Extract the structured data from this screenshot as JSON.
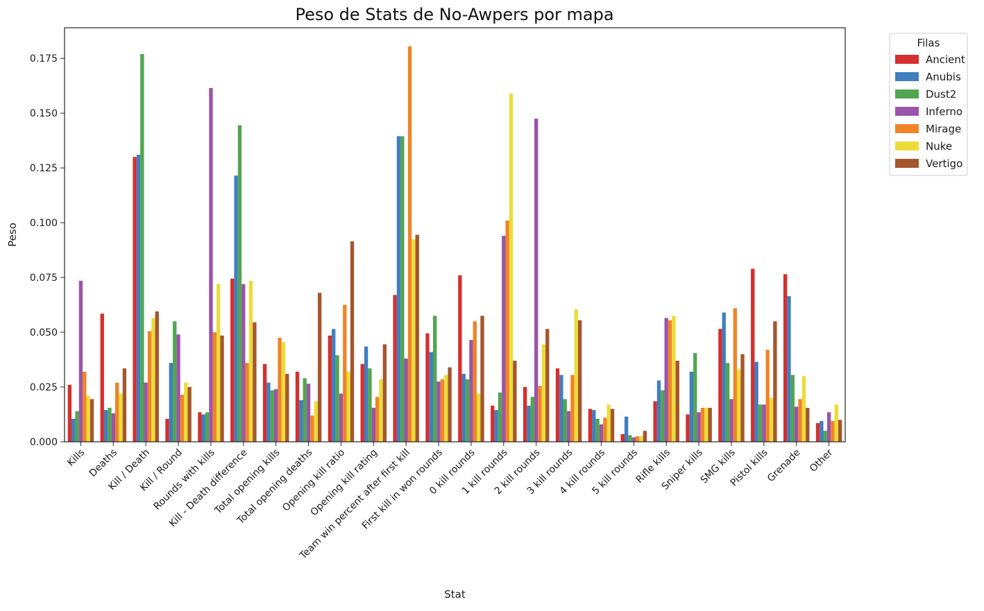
{
  "chart_data": {
    "type": "bar",
    "title": "Peso de Stats de No-Awpers por mapa",
    "xlabel": "Stat",
    "ylabel": "Peso",
    "ylim": [
      0,
      0.189
    ],
    "yticks": [
      "0.000",
      "0.025",
      "0.050",
      "0.075",
      "0.100",
      "0.125",
      "0.150",
      "0.175"
    ],
    "legend": {
      "title": "Filas",
      "position": "outside-top-right"
    },
    "categories": [
      "Kills",
      "Deaths",
      "Kill / Death",
      "Kill / Round",
      "Rounds with kills",
      "Kill - Death difference",
      "Total opening kills",
      "Total opening deaths",
      "Opening kill ratio",
      "Opening kill rating",
      "Team win percent after first kill",
      "First kill in won rounds",
      "0 kill rounds",
      "1 kill rounds",
      "2 kill rounds",
      "3 kill rounds",
      "4 kill rounds",
      "5 kill rounds",
      "Rifle kills",
      "Sniper kills",
      "SMG kills",
      "Pistol kills",
      "Grenade",
      "Other"
    ],
    "series": [
      {
        "name": "Ancient",
        "color": "#d62f2f",
        "values": [
          0.026,
          0.0585,
          0.13,
          0.0105,
          0.0135,
          0.0745,
          0.0355,
          0.032,
          0.0485,
          0.0355,
          0.067,
          0.0495,
          0.076,
          0.0165,
          0.025,
          0.0335,
          0.015,
          0.0035,
          0.0185,
          0.0125,
          0.0515,
          0.079,
          0.0765,
          0.0085
        ]
      },
      {
        "name": "Anubis",
        "color": "#3f7fbf",
        "values": [
          0.0105,
          0.0145,
          0.131,
          0.036,
          0.0125,
          0.1215,
          0.027,
          0.019,
          0.0515,
          0.0435,
          0.1395,
          0.041,
          0.031,
          0.0145,
          0.0165,
          0.0305,
          0.0145,
          0.0115,
          0.028,
          0.032,
          0.059,
          0.0365,
          0.0665,
          0.0095
        ]
      },
      {
        "name": "Dust2",
        "color": "#52a552",
        "values": [
          0.014,
          0.0155,
          0.177,
          0.055,
          0.0135,
          0.1445,
          0.0235,
          0.029,
          0.0395,
          0.0335,
          0.1395,
          0.0575,
          0.0285,
          0.0225,
          0.0205,
          0.0195,
          0.0105,
          0.003,
          0.0235,
          0.0405,
          0.036,
          0.017,
          0.0305,
          0.005
        ]
      },
      {
        "name": "Inferno",
        "color": "#9a55a8",
        "values": [
          0.0735,
          0.013,
          0.027,
          0.049,
          0.1615,
          0.072,
          0.024,
          0.0265,
          0.022,
          0.0155,
          0.038,
          0.0275,
          0.0465,
          0.094,
          0.1475,
          0.014,
          0.008,
          0.002,
          0.0565,
          0.0135,
          0.0195,
          0.017,
          0.016,
          0.0135
        ]
      },
      {
        "name": "Mirage",
        "color": "#f08427",
        "values": [
          0.032,
          0.027,
          0.0505,
          0.0215,
          0.05,
          0.036,
          0.0475,
          0.012,
          0.0625,
          0.0205,
          0.1805,
          0.0285,
          0.055,
          0.101,
          0.0255,
          0.0305,
          0.011,
          0.0025,
          0.0555,
          0.0155,
          0.061,
          0.042,
          0.0195,
          0.0095
        ]
      },
      {
        "name": "Nuke",
        "color": "#ecdc3a",
        "values": [
          0.021,
          0.022,
          0.0565,
          0.027,
          0.072,
          0.0735,
          0.0455,
          0.0185,
          0.032,
          0.0285,
          0.0925,
          0.0305,
          0.022,
          0.159,
          0.0445,
          0.0605,
          0.017,
          0.0025,
          0.0575,
          0.0155,
          0.033,
          0.02,
          0.03,
          0.017
        ]
      },
      {
        "name": "Vertigo",
        "color": "#a5562e",
        "values": [
          0.0195,
          0.0335,
          0.0595,
          0.025,
          0.0485,
          0.0545,
          0.031,
          0.068,
          0.0915,
          0.0445,
          0.0945,
          0.034,
          0.0575,
          0.037,
          0.0515,
          0.0555,
          0.015,
          0.005,
          0.037,
          0.0155,
          0.04,
          0.055,
          0.0155,
          0.01
        ]
      }
    ]
  }
}
